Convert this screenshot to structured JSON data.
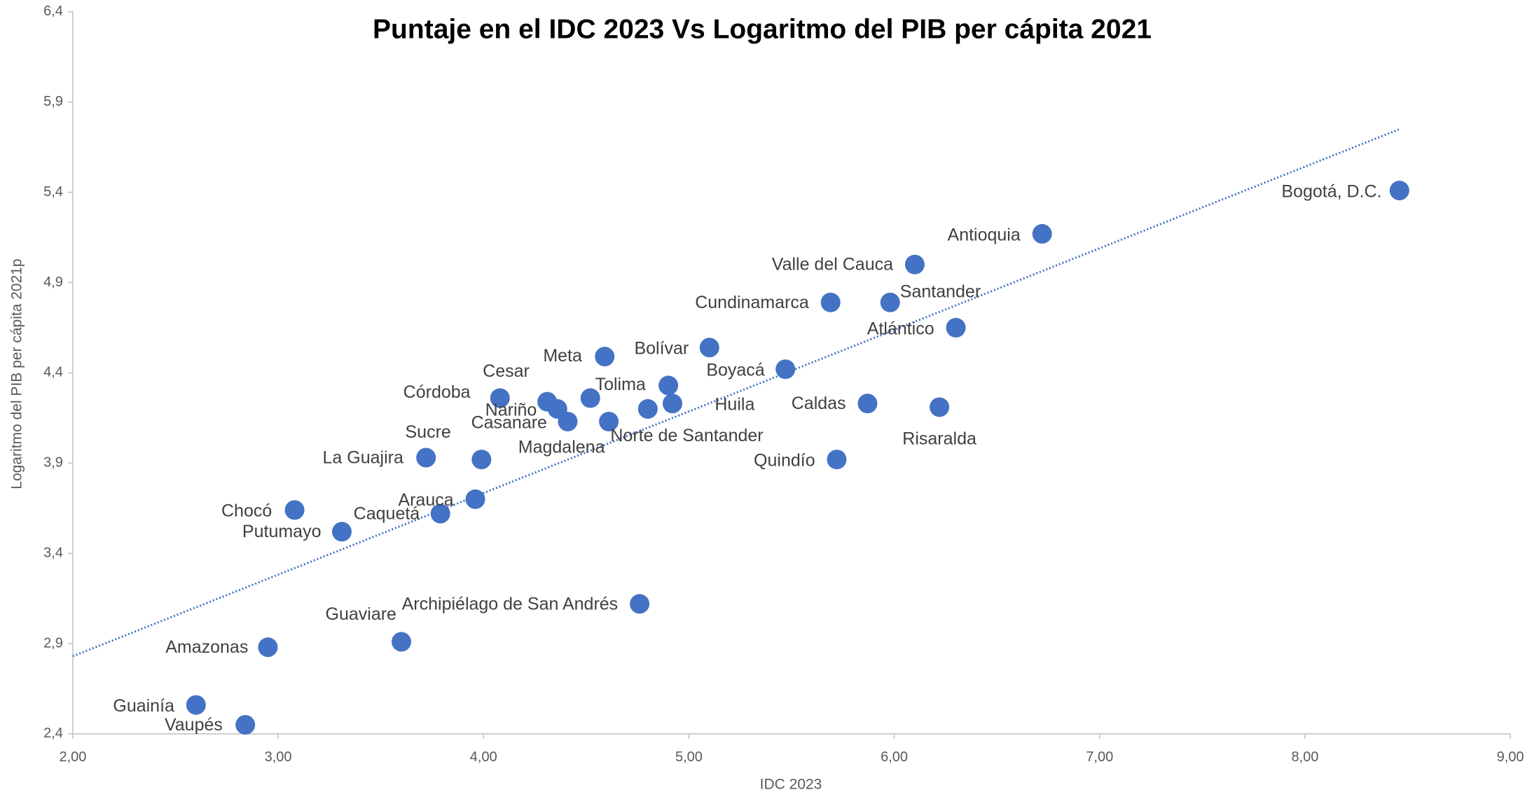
{
  "chart_data": {
    "type": "scatter",
    "title": "Puntaje en el IDC 2023 Vs Logaritmo del PIB per cápita 2021",
    "x_label": "IDC 2023",
    "y_label": "Logaritmo del PIB per cápita 2021p",
    "xlim": [
      2,
      9
    ],
    "ylim": [
      2.4,
      6.4
    ],
    "xticks": [
      {
        "value": 2,
        "label": "2,00"
      },
      {
        "value": 3,
        "label": "3,00"
      },
      {
        "value": 4,
        "label": "4,00"
      },
      {
        "value": 5,
        "label": "5,00"
      },
      {
        "value": 6,
        "label": "6,00"
      },
      {
        "value": 7,
        "label": "7,00"
      },
      {
        "value": 8,
        "label": "8,00"
      },
      {
        "value": 9,
        "label": "9,00"
      }
    ],
    "yticks": [
      {
        "value": 2.4,
        "label": "2,4"
      },
      {
        "value": 2.9,
        "label": "2,9"
      },
      {
        "value": 3.4,
        "label": "3,4"
      },
      {
        "value": 3.9,
        "label": "3,9"
      },
      {
        "value": 4.4,
        "label": "4,4"
      },
      {
        "value": 4.9,
        "label": "4,9"
      },
      {
        "value": 5.4,
        "label": "5,4"
      },
      {
        "value": 5.9,
        "label": "5,9"
      },
      {
        "value": 6.4,
        "label": "6,4"
      }
    ],
    "grid": false,
    "color": "#4472c4",
    "labels": [
      "Bogotá, D.C.",
      "Antioquia",
      "Valle del Cauca",
      "Santander",
      "Cundinamarca",
      "Atlántico",
      "Bolívar",
      "Meta",
      "Boyacá",
      "Tolima",
      "Caldas",
      "Risaralda",
      "Huila",
      "Norte de Santander",
      "Cesar",
      "Nariño",
      null,
      "Casanare",
      "Córdoba",
      "Magdalena",
      "Quindío",
      "Sucre",
      "La Guajira",
      "Arauca",
      "Caquetá",
      "Chocó",
      "Putumayo",
      "Archipiélago de San Andrés",
      "Guaviare",
      "Amazonas",
      "Guainía",
      "Vaupés"
    ],
    "x": [
      8.46,
      6.72,
      6.1,
      5.98,
      5.69,
      6.3,
      5.1,
      4.59,
      5.47,
      4.9,
      5.87,
      6.22,
      4.92,
      4.8,
      4.31,
      4.36,
      4.52,
      4.41,
      4.08,
      4.61,
      5.72,
      3.99,
      3.72,
      3.96,
      3.79,
      3.08,
      3.31,
      4.76,
      3.6,
      2.95,
      2.6,
      2.84
    ],
    "y": [
      5.41,
      5.17,
      5.0,
      4.79,
      4.79,
      4.65,
      4.54,
      4.49,
      4.42,
      4.33,
      4.23,
      4.21,
      4.23,
      4.2,
      4.24,
      4.2,
      4.26,
      4.13,
      4.26,
      4.13,
      3.92,
      3.92,
      3.93,
      3.7,
      3.62,
      3.64,
      3.52,
      3.12,
      2.91,
      2.88,
      2.56,
      2.45
    ],
    "trendline": {
      "x": [
        2,
        8.46
      ],
      "y": [
        2.83,
        5.75
      ]
    }
  }
}
